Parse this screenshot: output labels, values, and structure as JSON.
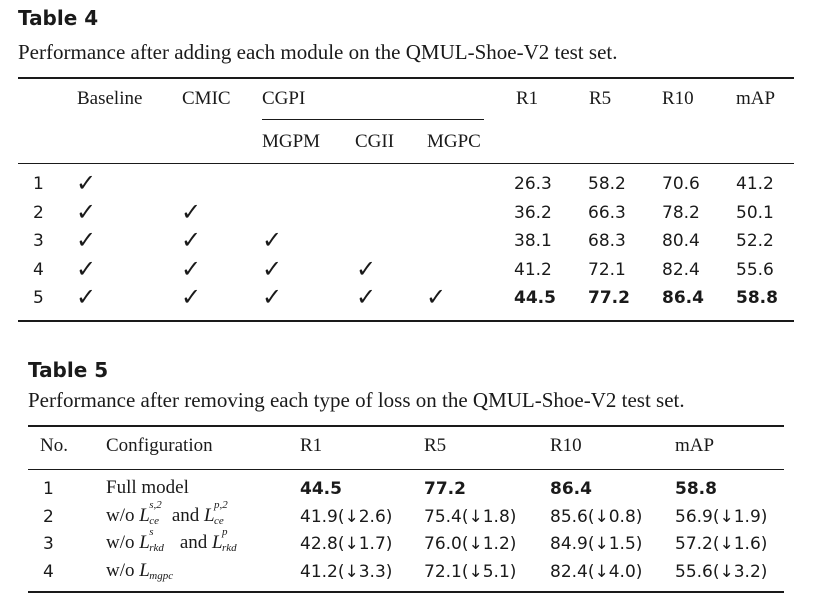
{
  "table4": {
    "title": "Table 4",
    "caption": "Performance after adding each module on the QMUL-Shoe-V2 test set.",
    "headers": {
      "baseline": "Baseline",
      "cmic": "CMIC",
      "cgpi": "CGPI",
      "mgpm": "MGPM",
      "cgii": "CGII",
      "mgpc": "MGPC",
      "r1": "R1",
      "r5": "R5",
      "r10": "R10",
      "map": "mAP"
    },
    "check_glyph": "✓",
    "rows": [
      {
        "id": "1",
        "checks": [
          true,
          false,
          false,
          false,
          false
        ],
        "r1": "26.3",
        "r5": "58.2",
        "r10": "70.6",
        "map": "41.2",
        "bold": false
      },
      {
        "id": "2",
        "checks": [
          true,
          true,
          false,
          false,
          false
        ],
        "r1": "36.2",
        "r5": "66.3",
        "r10": "78.2",
        "map": "50.1",
        "bold": false
      },
      {
        "id": "3",
        "checks": [
          true,
          true,
          true,
          false,
          false
        ],
        "r1": "38.1",
        "r5": "68.3",
        "r10": "80.4",
        "map": "52.2",
        "bold": false
      },
      {
        "id": "4",
        "checks": [
          true,
          true,
          true,
          true,
          false
        ],
        "r1": "41.2",
        "r5": "72.1",
        "r10": "82.4",
        "map": "55.6",
        "bold": false
      },
      {
        "id": "5",
        "checks": [
          true,
          true,
          true,
          true,
          true
        ],
        "r1": "44.5",
        "r5": "77.2",
        "r10": "86.4",
        "map": "58.8",
        "bold": true
      }
    ]
  },
  "table5": {
    "title": "Table 5",
    "caption": "Performance after removing each type of loss on the QMUL-Shoe-V2 test set.",
    "headers": {
      "no": "No.",
      "config": "Configuration",
      "r1": "R1",
      "r5": "R5",
      "r10": "R10",
      "map": "mAP"
    },
    "rows": [
      {
        "id": "1",
        "config": "Full model",
        "r1": "44.5",
        "r5": "77.2",
        "r10": "86.4",
        "map": "58.8",
        "bold": true
      },
      {
        "id": "2",
        "config_prefix": "w/o",
        "sym1": {
          "base": "L",
          "sup": "s,2",
          "sub": "ce"
        },
        "joiner": "and",
        "sym2": {
          "base": "L",
          "sup": "p,2",
          "sub": "ce"
        },
        "r1": "41.9(↓2.6)",
        "r5": "75.4(↓1.8)",
        "r10": "85.6(↓0.8)",
        "map": "56.9(↓1.9)",
        "bold": false
      },
      {
        "id": "3",
        "config_prefix": "w/o",
        "sym1": {
          "base": "L",
          "sup": "s",
          "sub": "rkd"
        },
        "joiner": "and",
        "sym2": {
          "base": "L",
          "sup": "p",
          "sub": "rkd"
        },
        "r1": "42.8(↓1.7)",
        "r5": "76.0(↓1.2)",
        "r10": "84.9(↓1.5)",
        "map": "57.2(↓1.6)",
        "bold": false
      },
      {
        "id": "4",
        "config_prefix": "w/o",
        "sym1": {
          "base": "L",
          "sup": "",
          "sub": "mgpc"
        },
        "r1": "41.2(↓3.3)",
        "r5": "72.1(↓5.1)",
        "r10": "82.4(↓4.0)",
        "map": "55.6(↓3.2)",
        "bold": false
      }
    ]
  }
}
